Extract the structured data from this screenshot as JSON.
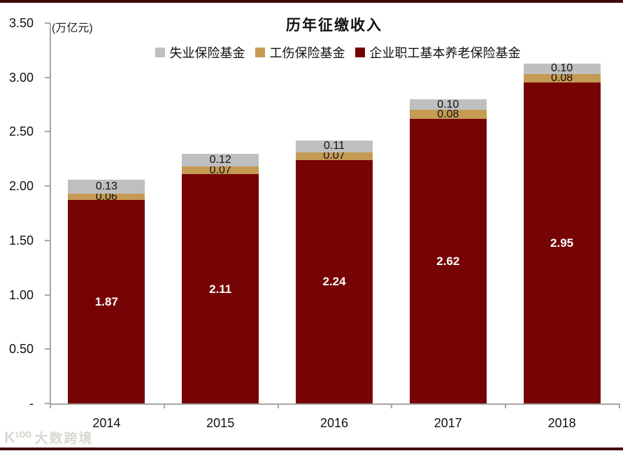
{
  "meta": {
    "title": "历年征缴收入",
    "unit_label": "(万亿元)",
    "watermark_logo": "K¹⁰⁰",
    "watermark_text": "大数跨境"
  },
  "colors": {
    "pension": "#760405",
    "injury": "#C59A53",
    "unemployment": "#BFBFBF",
    "axis": "#A6A6A6",
    "frame": "#420808",
    "label_on_dark": "#FFFFFF",
    "label_on_light": "#111111"
  },
  "chart_data": {
    "type": "bar",
    "stacked": true,
    "title": "历年征缴收入",
    "unit": "万亿元",
    "xlabel": "",
    "ylabel": "(万亿元)",
    "categories": [
      "2014",
      "2015",
      "2016",
      "2017",
      "2018"
    ],
    "series": [
      {
        "name": "企业职工基本养老保险基金",
        "color": "#760405",
        "values": [
          1.87,
          2.11,
          2.24,
          2.62,
          2.95
        ],
        "label_style": "on-dark"
      },
      {
        "name": "工伤保险基金",
        "color": "#C59A53",
        "values": [
          0.06,
          0.07,
          0.07,
          0.08,
          0.08
        ],
        "label_style": "on-light"
      },
      {
        "name": "失业保险基金",
        "color": "#BFBFBF",
        "values": [
          0.13,
          0.12,
          0.11,
          0.1,
          0.1
        ],
        "label_style": "on-light"
      }
    ],
    "legend": [
      {
        "label": "失业保险基金",
        "color": "#BFBFBF"
      },
      {
        "label": "工伤保险基金",
        "color": "#C59A53"
      },
      {
        "label": "企业职工基本养老保险基金",
        "color": "#760405"
      }
    ],
    "y_ticks": [
      "3.50",
      "3.00",
      "2.50",
      "2.00",
      "1.50",
      "1.00",
      "0.50",
      "-"
    ],
    "ylim": [
      0,
      3.5
    ],
    "grid": false,
    "legend_position": "top"
  }
}
